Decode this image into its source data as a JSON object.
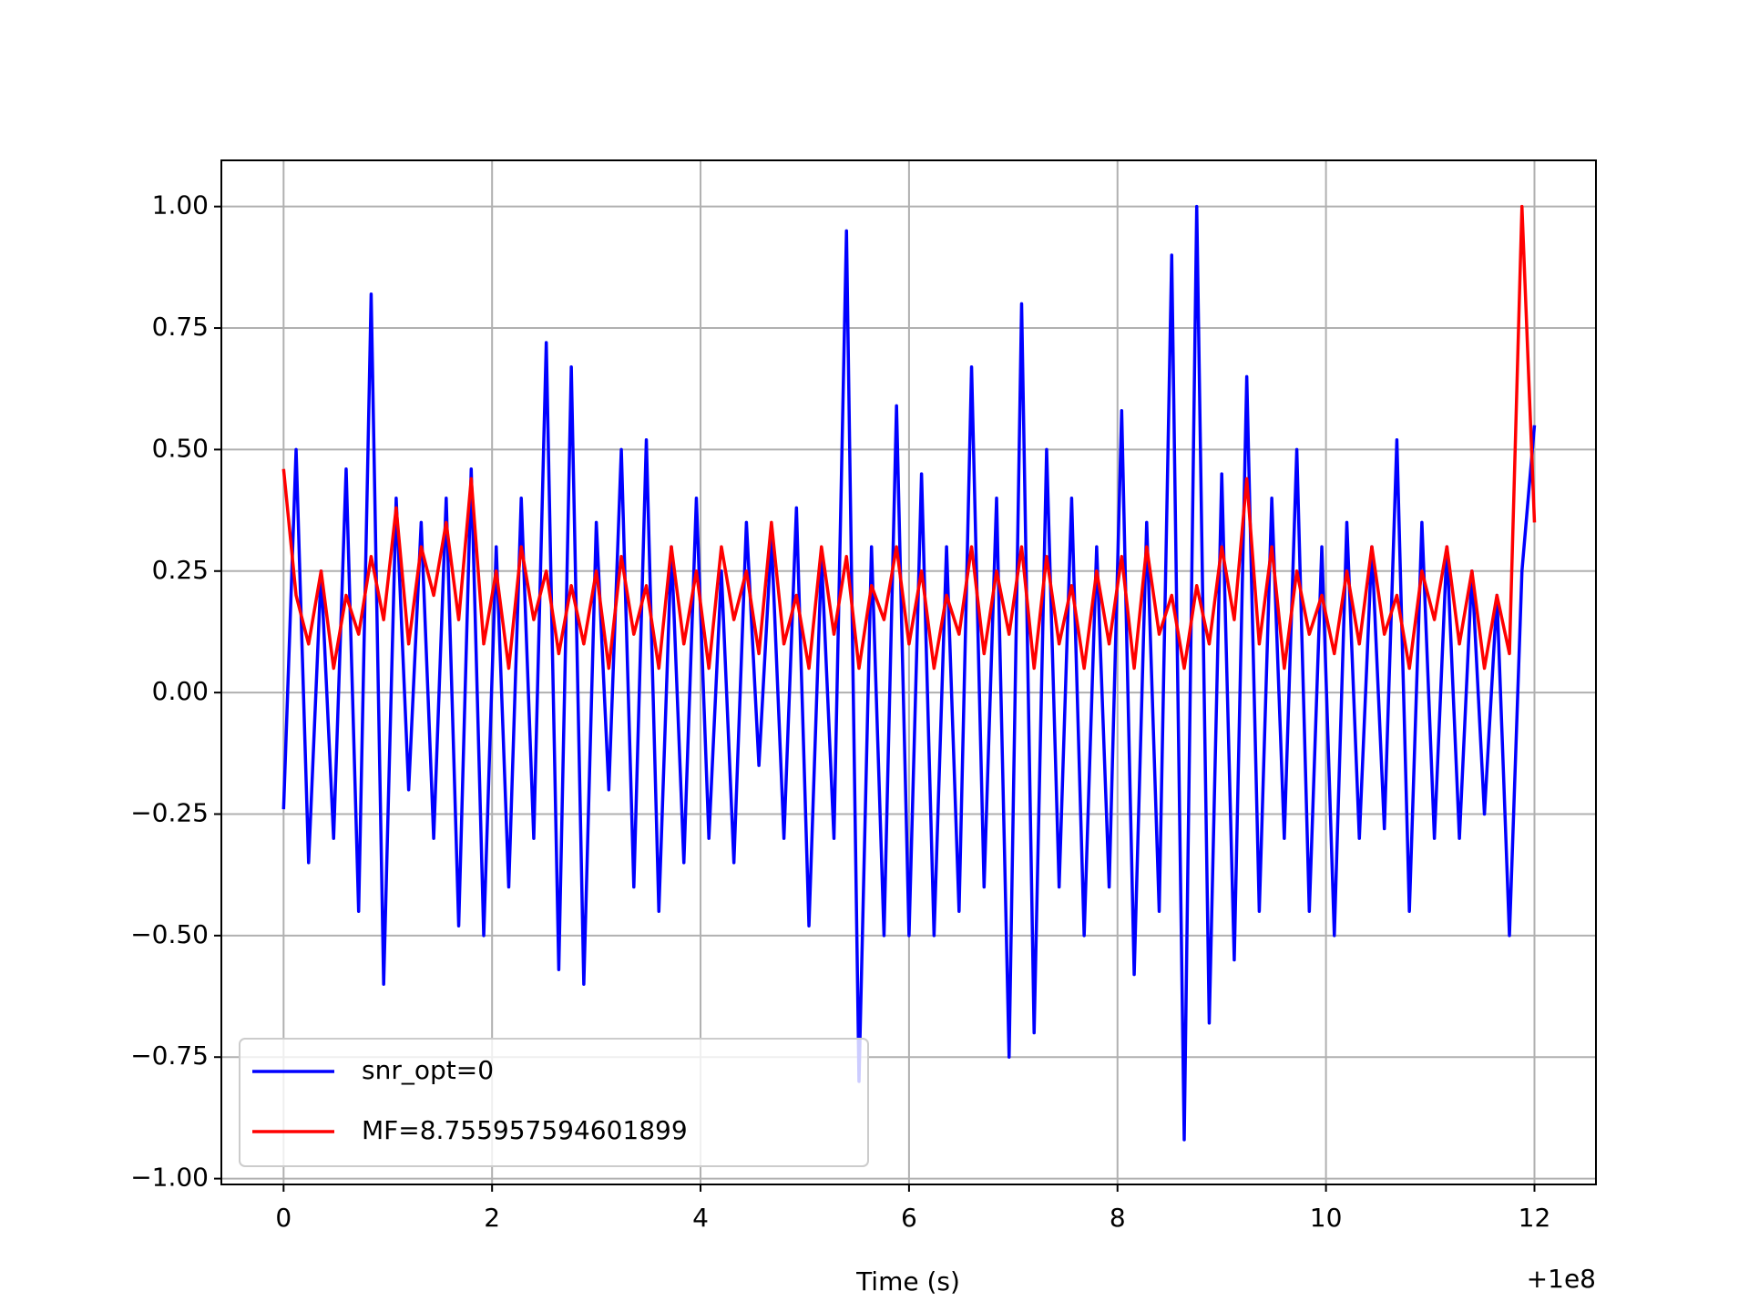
{
  "chart_data": {
    "type": "line",
    "xlabel": "Time (s)",
    "x_offset_label": "+1e8",
    "x": [
      0,
      0.12,
      0.24,
      0.36,
      0.48,
      0.6,
      0.72,
      0.84,
      0.96,
      1.08,
      1.2,
      1.32,
      1.44,
      1.56,
      1.68,
      1.8,
      1.92,
      2.04,
      2.16,
      2.28,
      2.4,
      2.52,
      2.64,
      2.76,
      2.88,
      3.0,
      3.12,
      3.24,
      3.36,
      3.48,
      3.6,
      3.72,
      3.84,
      3.96,
      4.08,
      4.2,
      4.32,
      4.44,
      4.56,
      4.68,
      4.8,
      4.92,
      5.04,
      5.16,
      5.28,
      5.4,
      5.52,
      5.64,
      5.76,
      5.88,
      6.0,
      6.12,
      6.24,
      6.36,
      6.48,
      6.6,
      6.72,
      6.84,
      6.96,
      7.08,
      7.2,
      7.32,
      7.44,
      7.56,
      7.68,
      7.8,
      7.92,
      8.04,
      8.16,
      8.28,
      8.4,
      8.52,
      8.64,
      8.76,
      8.88,
      9.0,
      9.12,
      9.24,
      9.36,
      9.48,
      9.6,
      9.72,
      9.84,
      9.96,
      10.08,
      10.2,
      10.32,
      10.44,
      10.56,
      10.68,
      10.8,
      10.92,
      11.04,
      11.16,
      11.28,
      11.4,
      11.52,
      11.64,
      11.76,
      11.88,
      12.0
    ],
    "series": [
      {
        "name": "snr_opt=0",
        "color": "#0000ff",
        "values": [
          -0.24,
          0.5,
          -0.35,
          0.25,
          -0.3,
          0.46,
          -0.45,
          0.82,
          -0.6,
          0.4,
          -0.2,
          0.35,
          -0.3,
          0.4,
          -0.48,
          0.46,
          -0.5,
          0.3,
          -0.4,
          0.4,
          -0.3,
          0.72,
          -0.57,
          0.67,
          -0.6,
          0.35,
          -0.2,
          0.5,
          -0.4,
          0.52,
          -0.45,
          0.3,
          -0.35,
          0.4,
          -0.3,
          0.25,
          -0.35,
          0.35,
          -0.15,
          0.32,
          -0.3,
          0.38,
          -0.48,
          0.28,
          -0.3,
          0.95,
          -0.8,
          0.3,
          -0.5,
          0.59,
          -0.5,
          0.45,
          -0.5,
          0.3,
          -0.45,
          0.67,
          -0.4,
          0.4,
          -0.75,
          0.8,
          -0.7,
          0.5,
          -0.4,
          0.4,
          -0.5,
          0.3,
          -0.4,
          0.58,
          -0.58,
          0.35,
          -0.45,
          0.9,
          -0.92,
          1.0,
          -0.68,
          0.45,
          -0.55,
          0.65,
          -0.45,
          0.4,
          -0.3,
          0.5,
          -0.45,
          0.3,
          -0.5,
          0.35,
          -0.3,
          0.3,
          -0.28,
          0.52,
          -0.45,
          0.35,
          -0.3,
          0.3,
          -0.3,
          0.25,
          -0.25,
          0.2,
          -0.5,
          0.25,
          0.55
        ]
      },
      {
        "name": "MF=8.755957594601899",
        "color": "#ff0000",
        "values": [
          0.46,
          0.2,
          0.1,
          0.25,
          0.05,
          0.2,
          0.12,
          0.28,
          0.15,
          0.38,
          0.1,
          0.3,
          0.2,
          0.35,
          0.15,
          0.44,
          0.1,
          0.25,
          0.05,
          0.3,
          0.15,
          0.25,
          0.08,
          0.22,
          0.1,
          0.25,
          0.05,
          0.28,
          0.12,
          0.22,
          0.05,
          0.3,
          0.1,
          0.25,
          0.05,
          0.3,
          0.15,
          0.25,
          0.08,
          0.35,
          0.1,
          0.2,
          0.05,
          0.3,
          0.12,
          0.28,
          0.05,
          0.22,
          0.15,
          0.3,
          0.1,
          0.25,
          0.05,
          0.2,
          0.12,
          0.3,
          0.08,
          0.25,
          0.12,
          0.3,
          0.05,
          0.28,
          0.1,
          0.22,
          0.05,
          0.25,
          0.1,
          0.28,
          0.05,
          0.3,
          0.12,
          0.2,
          0.05,
          0.22,
          0.1,
          0.3,
          0.15,
          0.44,
          0.1,
          0.3,
          0.05,
          0.25,
          0.12,
          0.2,
          0.08,
          0.25,
          0.1,
          0.3,
          0.12,
          0.2,
          0.05,
          0.25,
          0.15,
          0.3,
          0.1,
          0.25,
          0.05,
          0.2,
          0.08,
          1.0,
          0.35
        ]
      }
    ],
    "xlim": [
      -0.597,
      12.59
    ],
    "xticks": [
      0,
      2,
      4,
      6,
      8,
      10,
      12
    ],
    "ylim": [
      -1.012,
      1.095
    ],
    "yticks": [
      {
        "value": -1.0,
        "label": "−1.00"
      },
      {
        "value": -0.75,
        "label": "−0.75"
      },
      {
        "value": -0.5,
        "label": "−0.50"
      },
      {
        "value": -0.25,
        "label": "−0.25"
      },
      {
        "value": 0.0,
        "label": "0.00"
      },
      {
        "value": 0.25,
        "label": "0.25"
      },
      {
        "value": 0.5,
        "label": "0.50"
      },
      {
        "value": 0.75,
        "label": "0.75"
      },
      {
        "value": 1.0,
        "label": "1.00"
      }
    ],
    "grid": true,
    "legend": "lower left"
  }
}
